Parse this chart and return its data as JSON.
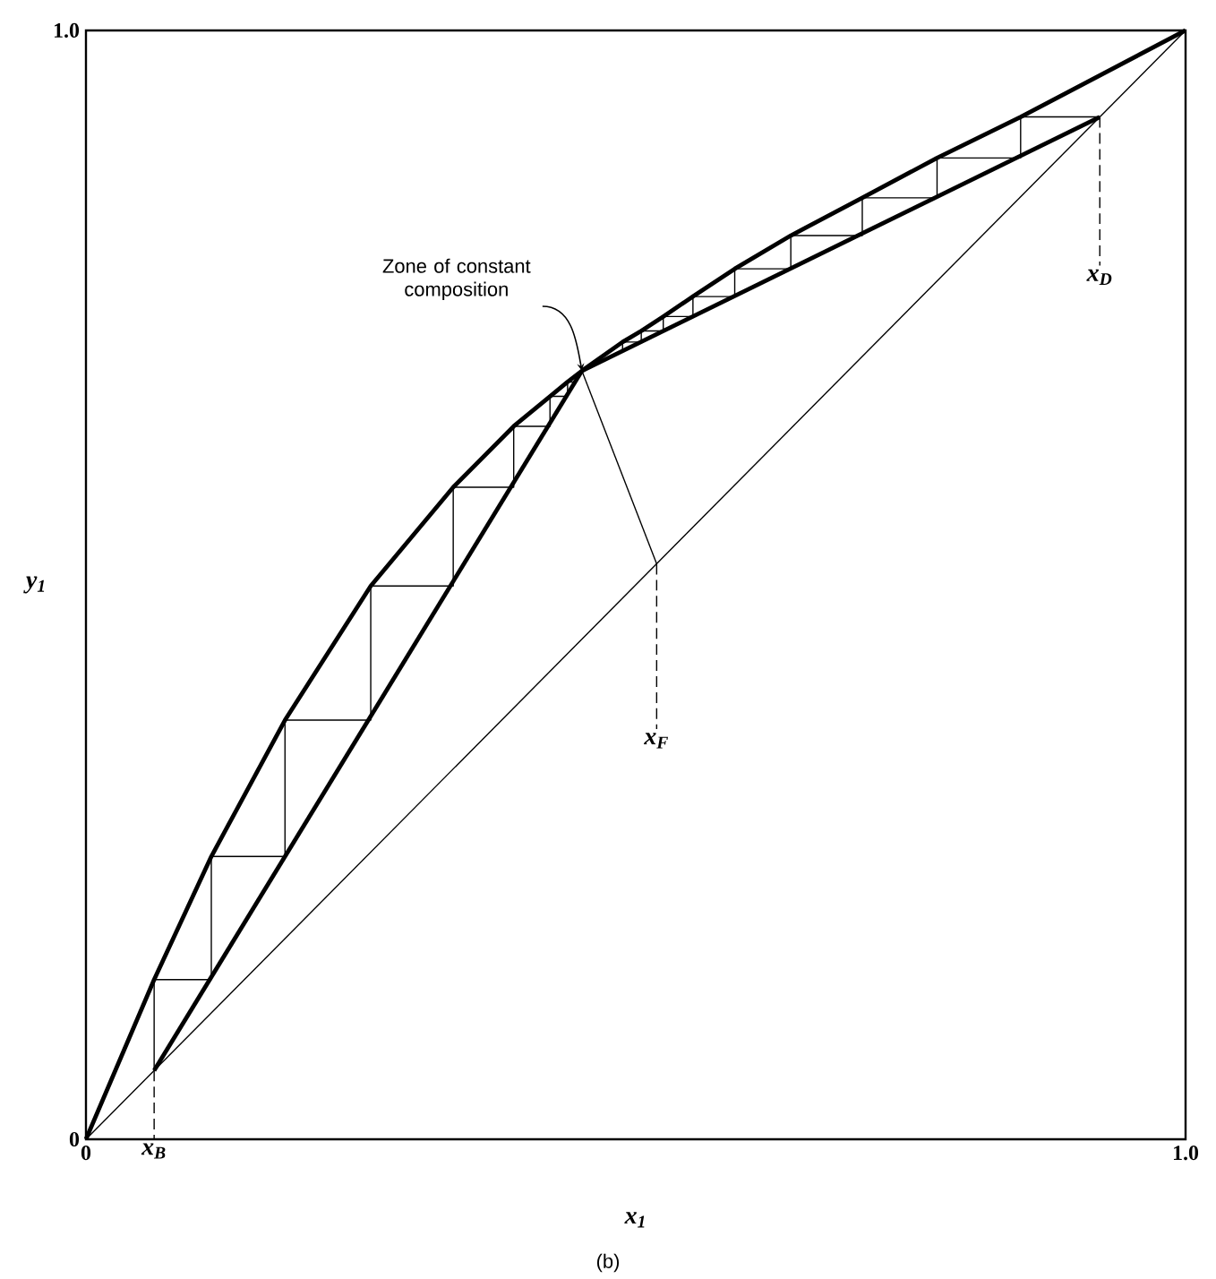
{
  "chart_data": {
    "type": "line",
    "xlabel": "x$_{1}$",
    "ylabel": "y$_{1}$",
    "xlim": [
      0,
      1
    ],
    "ylim": [
      0,
      1
    ],
    "xticks": [
      0,
      {
        "value": 1,
        "label": "1.0"
      }
    ],
    "yticks": [
      0,
      {
        "value": 1,
        "label": "1.0"
      }
    ],
    "marker": "none",
    "series": [
      {
        "color": "#000000",
        "x": [
          0,
          0.062,
          0.114,
          0.181,
          0.259,
          0.334,
          0.389,
          0.422,
          0.438,
          0.451,
          0.488,
          0.505,
          0.525,
          0.552,
          0.59,
          0.641,
          0.706,
          0.774,
          0.85,
          1
        ],
        "values": [
          0,
          0.144,
          0.255,
          0.378,
          0.499,
          0.588,
          0.643,
          0.67,
          0.683,
          0.693,
          0.719,
          0.729,
          0.742,
          0.76,
          0.785,
          0.815,
          0.849,
          0.885,
          0.922,
          1
        ]
      },
      {
        "color": "#000000",
        "x": [
          0.062,
          0.451
        ],
        "values": [
          0.062,
          0.693
        ]
      },
      {
        "color": "#000000",
        "x": [
          0.451,
          0.922
        ],
        "values": [
          0.693,
          0.922
        ]
      },
      {
        "color": "#000000",
        "x": [
          0,
          1
        ],
        "values": [
          0,
          1
        ]
      },
      {
        "color": "#000000",
        "x": [
          0.519,
          0.451
        ],
        "values": [
          0.519,
          0.693
        ]
      },
      {
        "color": "#000000",
        "x": [
          0.062,
          0.062,
          0.114,
          0.114,
          0.181,
          0.181,
          0.259,
          0.259,
          0.334,
          0.334,
          0.389,
          0.389,
          0.422,
          0.422,
          0.438,
          0.438,
          0.445
        ],
        "values": [
          0.062,
          0.144,
          0.144,
          0.255,
          0.255,
          0.378,
          0.378,
          0.499,
          0.499,
          0.588,
          0.588,
          0.643,
          0.643,
          0.67,
          0.67,
          0.683,
          0.683
        ]
      },
      {
        "color": "#000000",
        "x": [
          0.922,
          0.85,
          0.85,
          0.774,
          0.774,
          0.706,
          0.706,
          0.641,
          0.641,
          0.59,
          0.59,
          0.552,
          0.552,
          0.525,
          0.525,
          0.505,
          0.505,
          0.488,
          0.488
        ],
        "values": [
          0.922,
          0.922,
          0.885,
          0.885,
          0.849,
          0.849,
          0.815,
          0.815,
          0.785,
          0.785,
          0.76,
          0.76,
          0.742,
          0.742,
          0.729,
          0.729,
          0.719,
          0.719,
          0.711
        ]
      },
      {
        "color": "#000000",
        "line_style": "dashed",
        "x": [
          0.062,
          0.062
        ],
        "values": [
          0.062,
          0
        ]
      },
      {
        "color": "#000000",
        "line_style": "dashed",
        "x": [
          0.519,
          0.519
        ],
        "values": [
          0.519,
          0.37
        ]
      },
      {
        "color": "#000000",
        "line_style": "dashed",
        "x": [
          0.922,
          0.922
        ],
        "values": [
          0.922,
          0.788
        ]
      }
    ],
    "annotations": [
      {
        "text": "Zone of constant composition",
        "x": 0.451,
        "y": 0.693
      },
      {
        "text": "x$_{B}$",
        "x": 0.062,
        "y": 0
      },
      {
        "text": "x$_{F}$",
        "x": 0.519,
        "y": 0.37
      },
      {
        "text": "x$_{D}$",
        "x": 0.922,
        "y": 0.788
      },
      "(b)"
    ]
  }
}
